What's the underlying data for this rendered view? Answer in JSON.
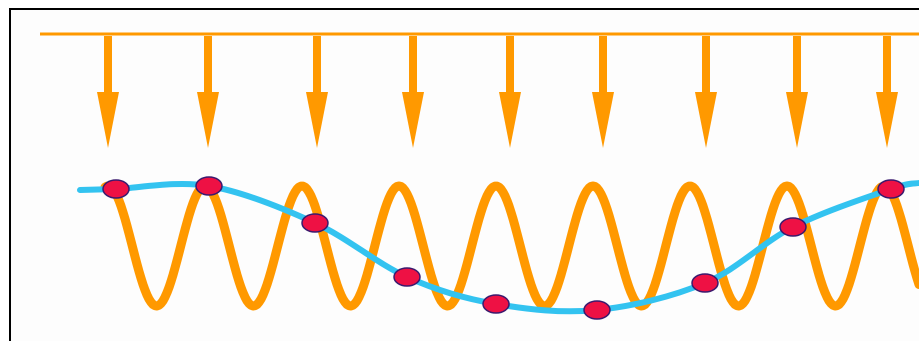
{
  "colors": {
    "background": "#ffffff",
    "panel": "#fdfdfd",
    "frame": "#000000",
    "wave": "#ff9900",
    "arrow": "#ff9900",
    "sampled_curve": "#33c3f0",
    "sample_point_fill": "#ee1144",
    "sample_point_stroke": "#3a1a6e"
  },
  "diagram": {
    "sampling_arrow_count": 9,
    "sample_point_count": 9,
    "wave_cycles_visible": 9,
    "description_marks": [
      "sampling-arrows",
      "high-frequency-wave",
      "sample-points",
      "aliased-curve"
    ]
  }
}
